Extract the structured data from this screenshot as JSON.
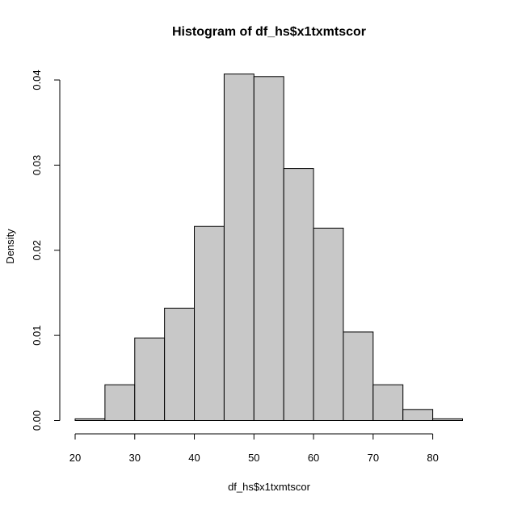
{
  "chart_data": {
    "type": "bar",
    "title": "Histogram of df_hs$x1txmtscor",
    "xlabel": "df_hs$x1txmtscor",
    "ylabel": "Density",
    "bin_edges": [
      20,
      25,
      30,
      35,
      40,
      45,
      50,
      55,
      60,
      65,
      70,
      75,
      80,
      85
    ],
    "values": [
      0.0002,
      0.0042,
      0.0097,
      0.0132,
      0.0228,
      0.0407,
      0.0404,
      0.0296,
      0.0226,
      0.0104,
      0.0042,
      0.0013,
      0.0002
    ],
    "xlim": [
      20,
      85
    ],
    "ylim": [
      0,
      0.04
    ],
    "x_ticks": [
      20,
      30,
      40,
      50,
      60,
      70,
      80
    ],
    "x_tick_labels": [
      "20",
      "30",
      "40",
      "50",
      "60",
      "70",
      "80"
    ],
    "y_ticks": [
      0,
      0.01,
      0.02,
      0.03,
      0.04
    ],
    "y_tick_labels": [
      "0.00",
      "0.01",
      "0.02",
      "0.03",
      "0.04"
    ],
    "grid": false,
    "colors": {
      "bar_fill": "#c8c8c8",
      "bar_stroke": "#000000"
    }
  }
}
